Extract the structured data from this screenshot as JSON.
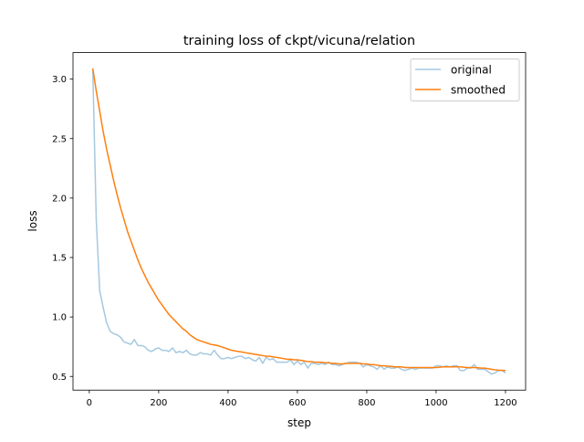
{
  "chart_data": {
    "type": "line",
    "title": "training loss of ckpt/vicuna/relation",
    "xlabel": "step",
    "ylabel": "loss",
    "xlim": [
      -47,
      1258
    ],
    "ylim": [
      0.385,
      3.223
    ],
    "xticks": [
      0,
      200,
      400,
      600,
      800,
      1000,
      1200
    ],
    "xtick_labels": [
      "0",
      "200",
      "400",
      "600",
      "800",
      "1000",
      "1200"
    ],
    "yticks": [
      0.5,
      1.0,
      1.5,
      2.0,
      2.5,
      3.0
    ],
    "ytick_labels": [
      "0.5",
      "1.0",
      "1.5",
      "2.0",
      "2.5",
      "3.0"
    ],
    "grid": false,
    "legend_position": "top-right",
    "x": [
      10,
      20,
      30,
      40,
      50,
      60,
      70,
      80,
      90,
      100,
      110,
      120,
      130,
      140,
      150,
      160,
      170,
      180,
      190,
      200,
      210,
      220,
      230,
      240,
      250,
      260,
      270,
      280,
      290,
      300,
      310,
      320,
      330,
      340,
      350,
      360,
      370,
      380,
      390,
      400,
      410,
      420,
      430,
      440,
      450,
      460,
      470,
      480,
      490,
      500,
      510,
      520,
      530,
      540,
      550,
      560,
      570,
      580,
      590,
      600,
      610,
      620,
      630,
      640,
      650,
      660,
      670,
      680,
      690,
      700,
      710,
      720,
      730,
      740,
      750,
      760,
      770,
      780,
      790,
      800,
      810,
      820,
      830,
      840,
      850,
      860,
      870,
      880,
      890,
      900,
      910,
      920,
      930,
      940,
      950,
      960,
      970,
      980,
      990,
      1000,
      1010,
      1020,
      1030,
      1040,
      1050,
      1060,
      1070,
      1080,
      1090,
      1100,
      1110,
      1120,
      1130,
      1140,
      1150,
      1160,
      1170,
      1180,
      1190,
      1200
    ],
    "series": [
      {
        "name": "original",
        "color": "#1f77b4",
        "alpha": 0.4,
        "values": [
          3.09,
          1.82,
          1.22,
          1.08,
          0.95,
          0.88,
          0.86,
          0.85,
          0.83,
          0.79,
          0.78,
          0.77,
          0.81,
          0.76,
          0.76,
          0.75,
          0.72,
          0.71,
          0.73,
          0.74,
          0.72,
          0.72,
          0.71,
          0.74,
          0.7,
          0.71,
          0.7,
          0.72,
          0.69,
          0.68,
          0.68,
          0.7,
          0.69,
          0.69,
          0.68,
          0.72,
          0.68,
          0.65,
          0.65,
          0.66,
          0.65,
          0.66,
          0.67,
          0.67,
          0.65,
          0.66,
          0.64,
          0.63,
          0.66,
          0.61,
          0.66,
          0.64,
          0.65,
          0.62,
          0.62,
          0.62,
          0.62,
          0.64,
          0.6,
          0.63,
          0.6,
          0.62,
          0.57,
          0.61,
          0.61,
          0.6,
          0.61,
          0.6,
          0.62,
          0.6,
          0.6,
          0.59,
          0.6,
          0.61,
          0.62,
          0.62,
          0.62,
          0.61,
          0.58,
          0.6,
          0.59,
          0.58,
          0.56,
          0.59,
          0.56,
          0.58,
          0.57,
          0.57,
          0.58,
          0.56,
          0.55,
          0.56,
          0.57,
          0.56,
          0.57,
          0.57,
          0.57,
          0.57,
          0.57,
          0.59,
          0.59,
          0.58,
          0.59,
          0.58,
          0.59,
          0.59,
          0.55,
          0.55,
          0.57,
          0.57,
          0.6,
          0.56,
          0.56,
          0.56,
          0.54,
          0.52,
          0.53,
          0.55,
          0.55,
          0.53
        ]
      },
      {
        "name": "smoothed",
        "color": "#ff7f0e",
        "alpha": 1.0,
        "values": [
          3.09,
          2.9,
          2.73,
          2.56,
          2.41,
          2.28,
          2.15,
          2.03,
          1.92,
          1.82,
          1.72,
          1.64,
          1.56,
          1.48,
          1.41,
          1.35,
          1.29,
          1.24,
          1.19,
          1.14,
          1.1,
          1.06,
          1.02,
          0.99,
          0.96,
          0.93,
          0.9,
          0.88,
          0.85,
          0.83,
          0.81,
          0.8,
          0.79,
          0.78,
          0.77,
          0.765,
          0.76,
          0.75,
          0.74,
          0.73,
          0.72,
          0.715,
          0.71,
          0.705,
          0.7,
          0.695,
          0.69,
          0.685,
          0.68,
          0.675,
          0.67,
          0.67,
          0.665,
          0.66,
          0.655,
          0.65,
          0.645,
          0.645,
          0.64,
          0.64,
          0.635,
          0.63,
          0.625,
          0.625,
          0.62,
          0.62,
          0.62,
          0.615,
          0.615,
          0.61,
          0.61,
          0.605,
          0.605,
          0.61,
          0.61,
          0.61,
          0.61,
          0.61,
          0.605,
          0.605,
          0.6,
          0.6,
          0.595,
          0.59,
          0.59,
          0.585,
          0.585,
          0.58,
          0.58,
          0.58,
          0.575,
          0.575,
          0.575,
          0.575,
          0.575,
          0.575,
          0.575,
          0.575,
          0.575,
          0.575,
          0.578,
          0.58,
          0.58,
          0.58,
          0.58,
          0.582,
          0.58,
          0.578,
          0.575,
          0.575,
          0.575,
          0.573,
          0.57,
          0.57,
          0.565,
          0.56,
          0.555,
          0.553,
          0.552,
          0.55
        ]
      }
    ]
  }
}
